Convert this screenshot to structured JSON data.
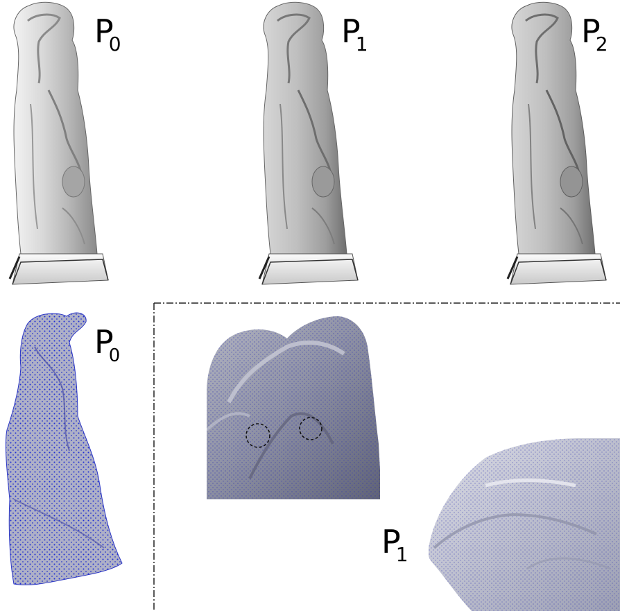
{
  "labels": {
    "top_left": {
      "base": "P",
      "sub": "0"
    },
    "top_middle": {
      "base": "P",
      "sub": "1"
    },
    "top_right": {
      "base": "P",
      "sub": "2"
    },
    "bottom_left": {
      "base": "P",
      "sub": "0"
    },
    "bottom_center": {
      "base": "P",
      "sub": "1"
    }
  },
  "colors": {
    "mesh_light": "#d9d9d9",
    "mesh_mid": "#a8a8a8",
    "mesh_dark": "#5a5a5a",
    "point_blue": "#1f2fd6",
    "zoom_gray": "#8d90a3",
    "frame": "#222222"
  },
  "icons": {
    "statue_model": "sculpture-mesh-icon",
    "pointcloud_model": "point-cloud-icon",
    "zoom_detail": "zoom-detail-icon",
    "circle_marker": "dashed-circle-icon"
  }
}
